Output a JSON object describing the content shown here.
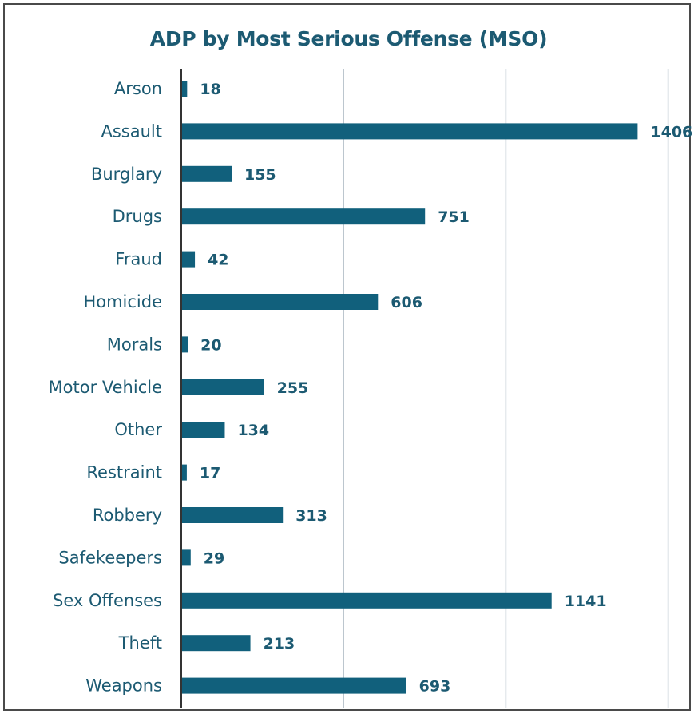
{
  "chart_data": {
    "type": "bar",
    "orientation": "horizontal",
    "title": "ADP by Most Serious Offense (MSO)",
    "categories": [
      "Arson",
      "Assault",
      "Burglary",
      "Drugs",
      "Fraud",
      "Homicide",
      "Morals",
      "Motor Vehicle",
      "Other",
      "Restraint",
      "Robbery",
      "Safekeepers",
      "Sex Offenses",
      "Theft",
      "Weapons"
    ],
    "values": [
      18,
      1406,
      155,
      751,
      42,
      606,
      20,
      255,
      134,
      17,
      313,
      29,
      1141,
      213,
      693
    ],
    "xlim": [
      0,
      1500
    ],
    "gridlines": [
      500,
      1000,
      1500
    ],
    "grid": true,
    "data_labels": true,
    "colors": {
      "bar": "#11607c",
      "text": "#1c5a72",
      "grid": "#b9c3cc",
      "axis": "#333333"
    }
  }
}
